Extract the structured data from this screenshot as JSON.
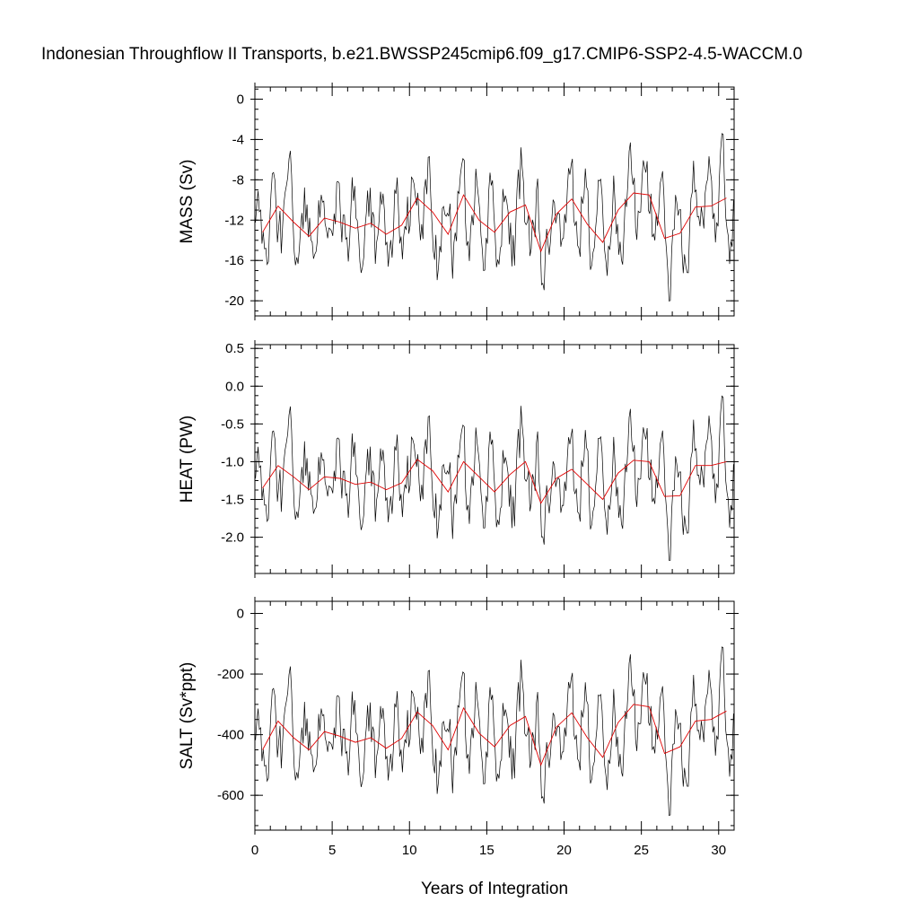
{
  "chart_data": {
    "type": "line",
    "title": "Indonesian Throughflow II Transports, b.e21.BWSSP245cmip6.f09_g17.CMIP6-SSP2-4.5-WACCM.0",
    "xlabel": "Years of Integration",
    "xlim": [
      0,
      31
    ],
    "xticks": [
      0,
      5,
      10,
      15,
      20,
      25,
      30
    ],
    "xtick_labels": [
      "0",
      "5",
      "10",
      "15",
      "20",
      "25",
      "30"
    ],
    "colors": {
      "raw": "#000000",
      "smooth": "#e00000"
    },
    "panels": [
      {
        "key": "mass",
        "ylabel": "MASS (Sv)",
        "ylim": [
          -21.5,
          1.2
        ],
        "yticks": [
          0,
          -4,
          -8,
          -12,
          -16,
          -20
        ],
        "ytick_labels": [
          "0",
          "-4",
          "-8",
          "-12",
          "-16",
          "-20"
        ],
        "monthly_range": [
          -21.5,
          1.0
        ],
        "smooth": {
          "x": [
            0.5,
            1.5,
            2.5,
            3.5,
            4.5,
            5.5,
            6.5,
            7.5,
            8.5,
            9.5,
            10.5,
            11.5,
            12.5,
            13.5,
            14.5,
            15.5,
            16.5,
            17.5,
            18.5,
            19.5,
            20.5,
            21.5,
            22.5,
            23.5,
            24.5,
            25.5,
            26.5,
            27.5,
            28.5,
            29.5,
            30.5
          ],
          "y": [
            -13.2,
            -10.6,
            -12.2,
            -13.6,
            -11.8,
            -12.2,
            -12.8,
            -12.3,
            -13.4,
            -12.5,
            -9.8,
            -11.2,
            -13.4,
            -9.5,
            -12.0,
            -13.2,
            -11.2,
            -10.5,
            -15.1,
            -11.4,
            -9.9,
            -12.4,
            -14.2,
            -11.0,
            -9.3,
            -9.5,
            -13.8,
            -13.3,
            -10.7,
            -10.6,
            -9.8
          ]
        }
      },
      {
        "key": "heat",
        "ylabel": "HEAT (PW)",
        "ylim": [
          -2.48,
          0.55
        ],
        "yticks": [
          0.5,
          0.0,
          -0.5,
          -1.0,
          -1.5,
          -2.0
        ],
        "ytick_labels": [
          "0.5",
          "0.0",
          "-0.5",
          "-1.0",
          "-1.5",
          "-2.0"
        ],
        "monthly_range": [
          -2.45,
          0.55
        ],
        "smooth": {
          "x": [
            0.5,
            1.5,
            2.5,
            3.5,
            4.5,
            5.5,
            6.5,
            7.5,
            8.5,
            9.5,
            10.5,
            11.5,
            12.5,
            13.5,
            14.5,
            15.5,
            16.5,
            17.5,
            18.5,
            19.5,
            20.5,
            21.5,
            22.5,
            23.5,
            24.5,
            25.5,
            26.5,
            27.5,
            28.5,
            29.5,
            30.5
          ],
          "y": [
            -1.35,
            -1.05,
            -1.2,
            -1.37,
            -1.2,
            -1.22,
            -1.3,
            -1.27,
            -1.37,
            -1.28,
            -0.97,
            -1.12,
            -1.4,
            -1.0,
            -1.2,
            -1.4,
            -1.17,
            -1.0,
            -1.55,
            -1.22,
            -1.1,
            -1.3,
            -1.5,
            -1.15,
            -0.98,
            -1.0,
            -1.46,
            -1.45,
            -1.05,
            -1.05,
            -1.0
          ]
        }
      },
      {
        "key": "salt",
        "ylabel": "SALT (Sv*ppt)",
        "ylim": [
          -715,
          40
        ],
        "yticks": [
          0,
          -200,
          -400,
          -600
        ],
        "ytick_labels": [
          "0",
          "-200",
          "-400",
          "-600"
        ],
        "monthly_range": [
          -710,
          35
        ],
        "smooth": {
          "x": [
            0.5,
            1.5,
            2.5,
            3.5,
            4.5,
            5.5,
            6.5,
            7.5,
            8.5,
            9.5,
            10.5,
            11.5,
            12.5,
            13.5,
            14.5,
            15.5,
            16.5,
            17.5,
            18.5,
            19.5,
            20.5,
            21.5,
            22.5,
            23.5,
            24.5,
            25.5,
            26.5,
            27.5,
            28.5,
            29.5,
            30.5
          ],
          "y": [
            -450,
            -355,
            -410,
            -450,
            -390,
            -405,
            -425,
            -410,
            -445,
            -412,
            -325,
            -370,
            -450,
            -312,
            -395,
            -440,
            -370,
            -340,
            -500,
            -375,
            -328,
            -410,
            -475,
            -360,
            -300,
            -308,
            -462,
            -440,
            -355,
            -350,
            -322
          ]
        }
      }
    ]
  }
}
